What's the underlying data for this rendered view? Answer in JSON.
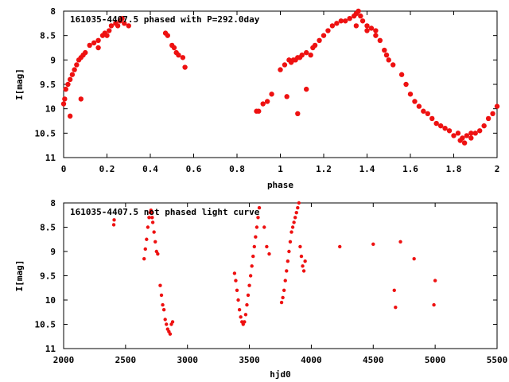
{
  "chart_data": [
    {
      "type": "scatter",
      "title": "161035-4407.5 phased with P=292.0day",
      "xlabel": "phase",
      "ylabel": "I[mag]",
      "xlim": [
        0,
        2
      ],
      "ylim": [
        11,
        8
      ],
      "y_inverted": true,
      "xticks": [
        "0",
        "0.2",
        "0.4",
        "0.6",
        "0.8",
        "1",
        "1.2",
        "1.4",
        "1.6",
        "1.8",
        "2"
      ],
      "xtick_values": [
        0,
        0.2,
        0.4,
        0.6,
        0.8,
        1.0,
        1.2,
        1.4,
        1.6,
        1.8,
        2.0
      ],
      "yticks": [
        "8",
        "8.5",
        "9",
        "9.5",
        "10",
        "10.5",
        "11"
      ],
      "ytick_values": [
        8,
        8.5,
        9,
        9.5,
        10,
        10.5,
        11
      ],
      "color": "#ee1111",
      "series": [
        {
          "x": [
            0.0,
            0.005,
            0.01,
            0.02,
            0.03,
            0.04,
            0.05,
            0.06,
            0.07,
            0.08,
            0.09,
            0.1,
            0.12,
            0.14,
            0.16,
            0.18,
            0.19,
            0.2,
            0.21,
            0.22,
            0.24,
            0.25,
            0.26,
            0.27,
            0.28,
            0.3,
            0.16,
            0.03,
            0.08,
            0.47,
            0.48,
            0.5,
            0.51,
            0.52,
            0.53,
            0.55,
            0.56,
            0.89,
            0.9,
            0.92,
            0.94,
            0.96,
            1.0,
            1.02,
            1.04,
            1.05,
            1.06,
            1.07,
            1.08,
            1.09,
            1.1,
            1.12,
            1.14,
            1.15,
            1.16,
            1.18,
            1.2,
            1.22,
            1.24,
            1.26,
            1.28,
            1.3,
            1.32,
            1.34,
            1.35,
            1.36,
            1.37,
            1.38,
            1.4,
            1.42,
            1.44,
            1.46,
            1.48,
            1.49,
            1.5,
            1.52,
            1.56,
            1.58,
            1.6,
            1.62,
            1.64,
            1.66,
            1.68,
            1.7,
            1.72,
            1.74,
            1.76,
            1.78,
            1.8,
            1.82,
            1.84,
            1.86,
            1.88,
            1.9,
            1.92,
            1.94,
            1.96,
            1.98,
            2.0,
            1.08,
            1.12,
            1.03,
            1.35,
            1.4,
            1.44,
            1.83,
            1.85,
            1.88
          ],
          "y": [
            9.9,
            9.8,
            9.6,
            9.5,
            9.4,
            9.3,
            9.2,
            9.1,
            9.0,
            8.95,
            8.9,
            8.85,
            8.7,
            8.65,
            8.6,
            8.5,
            8.45,
            8.5,
            8.4,
            8.3,
            8.25,
            8.3,
            8.2,
            8.15,
            8.25,
            8.3,
            8.75,
            10.15,
            9.8,
            8.45,
            8.5,
            8.7,
            8.75,
            8.85,
            8.9,
            8.95,
            9.15,
            10.05,
            10.05,
            9.9,
            9.85,
            9.7,
            9.2,
            9.1,
            9.0,
            9.05,
            9.0,
            9.0,
            8.95,
            8.95,
            8.9,
            8.85,
            8.9,
            8.75,
            8.7,
            8.6,
            8.5,
            8.4,
            8.3,
            8.25,
            8.2,
            8.2,
            8.15,
            8.1,
            8.05,
            8.0,
            8.1,
            8.2,
            8.3,
            8.35,
            8.4,
            8.6,
            8.8,
            8.9,
            9.0,
            9.1,
            9.3,
            9.5,
            9.7,
            9.85,
            9.95,
            10.05,
            10.1,
            10.2,
            10.3,
            10.35,
            10.4,
            10.45,
            10.55,
            10.5,
            10.6,
            10.55,
            10.5,
            10.5,
            10.45,
            10.35,
            10.2,
            10.1,
            9.95,
            10.1,
            9.6,
            9.75,
            8.3,
            8.4,
            8.5,
            10.65,
            10.7,
            10.6
          ]
        }
      ]
    },
    {
      "type": "scatter",
      "title": "161035-4407.5 not phased light curve",
      "xlabel": "hjd0",
      "ylabel": "I[mag]",
      "xlim": [
        2000,
        5500
      ],
      "ylim": [
        11,
        8
      ],
      "y_inverted": true,
      "xticks": [
        "2000",
        "2500",
        "3000",
        "3500",
        "4000",
        "4500",
        "5000",
        "5500"
      ],
      "xtick_values": [
        2000,
        2500,
        3000,
        3500,
        4000,
        4500,
        5000,
        5500
      ],
      "yticks": [
        "8",
        "8.5",
        "9",
        "9.5",
        "10",
        "10.5",
        "11"
      ],
      "ytick_values": [
        8,
        8.5,
        9,
        9.5,
        10,
        10.5,
        11
      ],
      "color": "#ee1111",
      "series": [
        {
          "x": [
            2405,
            2408,
            2650,
            2660,
            2670,
            2680,
            2690,
            2700,
            2705,
            2710,
            2715,
            2720,
            2730,
            2740,
            2750,
            2760,
            2780,
            2790,
            2800,
            2810,
            2820,
            2830,
            2840,
            2850,
            2860,
            2870,
            2880,
            3380,
            3390,
            3400,
            3410,
            3420,
            3430,
            3440,
            3450,
            3460,
            3470,
            3480,
            3490,
            3500,
            3510,
            3520,
            3530,
            3540,
            3550,
            3560,
            3570,
            3580,
            3620,
            3640,
            3660,
            3780,
            3790,
            3800,
            3810,
            3820,
            3830,
            3840,
            3850,
            3860,
            3870,
            3880,
            3890,
            3900,
            3910,
            3920,
            3930,
            3940,
            3950,
            3760,
            3770,
            4230,
            4500,
            4670,
            4680,
            4720,
            4830,
            4990,
            5000
          ],
          "y": [
            8.45,
            8.35,
            9.15,
            8.95,
            8.75,
            8.5,
            8.3,
            8.2,
            8.15,
            8.2,
            8.3,
            8.4,
            8.6,
            8.8,
            9.0,
            9.05,
            9.7,
            9.9,
            10.1,
            10.2,
            10.4,
            10.5,
            10.6,
            10.65,
            10.7,
            10.5,
            10.45,
            9.45,
            9.6,
            9.8,
            10.0,
            10.2,
            10.35,
            10.45,
            10.5,
            10.45,
            10.3,
            10.1,
            9.9,
            9.7,
            9.5,
            9.3,
            9.1,
            8.9,
            8.7,
            8.5,
            8.3,
            8.1,
            8.5,
            8.9,
            9.05,
            9.8,
            9.6,
            9.4,
            9.2,
            9.0,
            8.8,
            8.6,
            8.5,
            8.4,
            8.3,
            8.2,
            8.1,
            8.0,
            8.9,
            9.1,
            9.3,
            9.4,
            9.2,
            10.05,
            9.95,
            8.9,
            8.85,
            9.8,
            10.15,
            8.8,
            9.15,
            10.1,
            9.6
          ]
        }
      ]
    }
  ]
}
